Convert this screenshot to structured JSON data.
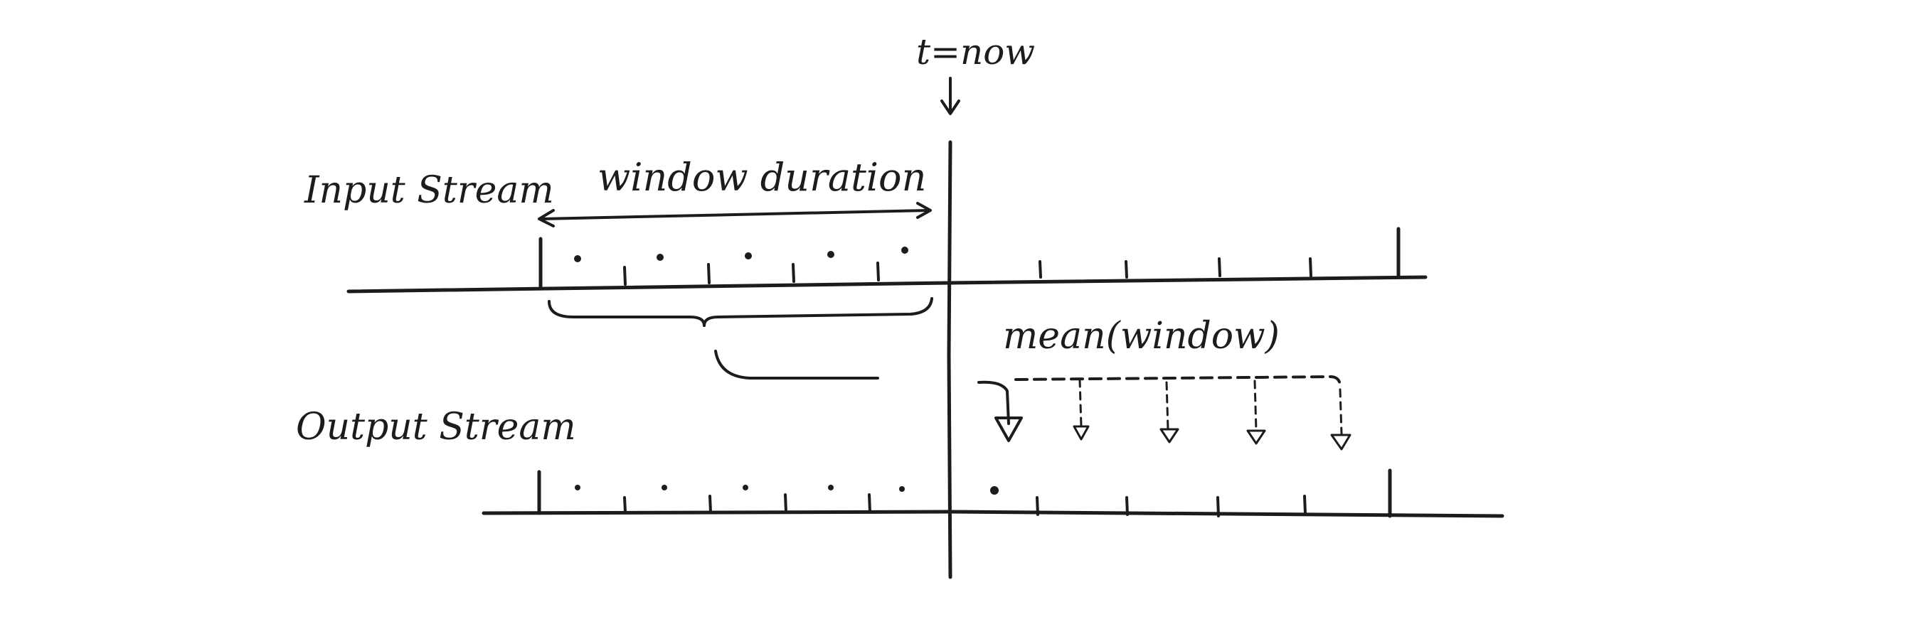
{
  "labels": {
    "now_marker": "t=now",
    "input_stream": "Input Stream",
    "window_duration": "window duration",
    "aggregate": "mean(window)",
    "output_stream": "Output Stream"
  },
  "colors": {
    "ink": "#1c1c1c",
    "paper": "#ffffff"
  }
}
